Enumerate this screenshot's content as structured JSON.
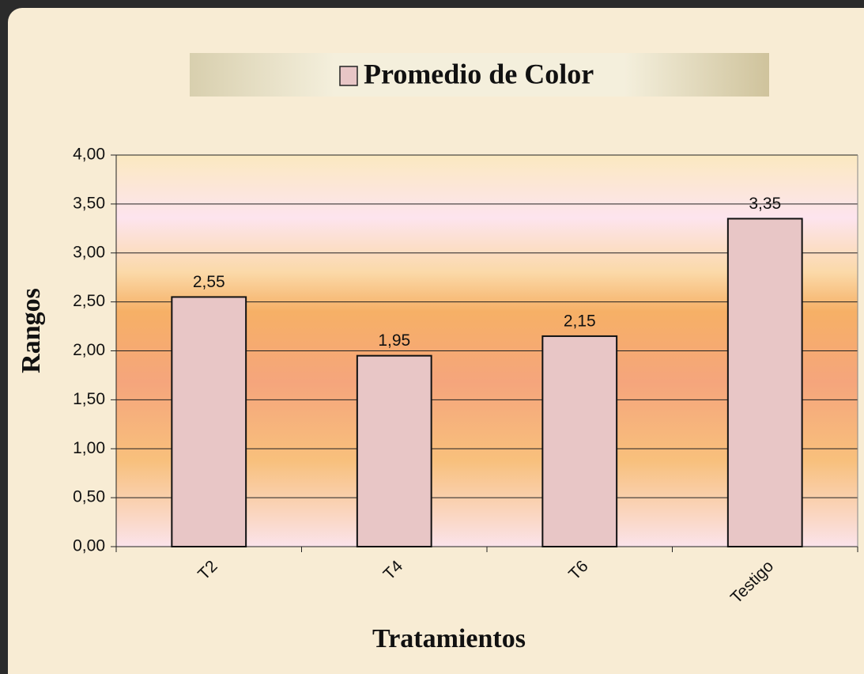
{
  "chart_data": {
    "type": "bar",
    "xlabel": "Tratamientos",
    "ylabel": "Rangos",
    "categories": [
      "T2",
      "T4",
      "T6",
      "Testigo"
    ],
    "series": [
      {
        "name": "Promedio de Color",
        "color": "#e8c6c6",
        "values": [
          2.55,
          1.95,
          2.15,
          3.35
        ],
        "value_labels": [
          "2,55",
          "1,95",
          "2,15",
          "3,35"
        ]
      }
    ],
    "ylim": [
      0,
      4
    ],
    "yticks": [
      {
        "value": 0,
        "label": "0,00"
      },
      {
        "value": 0.5,
        "label": "0,50"
      },
      {
        "value": 1,
        "label": "1,00"
      },
      {
        "value": 1.5,
        "label": "1,50"
      },
      {
        "value": 2,
        "label": "2,00"
      },
      {
        "value": 2.5,
        "label": "2,50"
      },
      {
        "value": 3,
        "label": "3,00"
      },
      {
        "value": 3.5,
        "label": "3,50"
      },
      {
        "value": 4,
        "label": "4,00"
      }
    ],
    "grid": true,
    "legend": "top"
  }
}
